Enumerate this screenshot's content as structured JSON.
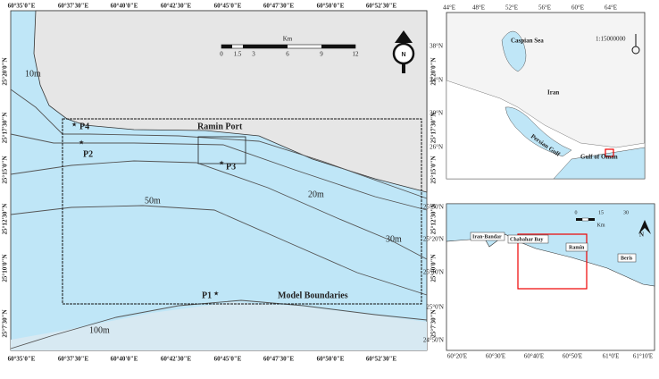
{
  "main_map": {
    "lon_labels": [
      "60°35'0\"E",
      "60°37'30\"E",
      "60°40'0\"E",
      "60°42'30\"E",
      "60°45'0\"E",
      "60°47'30\"E",
      "60°50'0\"E",
      "60°52'30\"E"
    ],
    "lat_labels": [
      "25°20'0\"N",
      "25°17'30\"N",
      "25°15'0\"N",
      "25°12'30\"N",
      "25°10'0\"N",
      "25°7'30\"N"
    ],
    "scale": {
      "unit": "Km",
      "ticks": [
        "0",
        "1.5",
        "3",
        "6",
        "9",
        "12"
      ]
    },
    "north": "N",
    "contours": [
      "10m",
      "20m",
      "30m",
      "50m",
      "100m"
    ],
    "points": [
      "P4",
      "P2",
      "P3",
      "P1"
    ],
    "port": "Ramin Port",
    "boundary": "Model Boundaries"
  },
  "iran_inset": {
    "lon_labels": [
      "44°E",
      "48°E",
      "52°E",
      "56°E",
      "60°E",
      "64°E"
    ],
    "lat_labels": [
      "38°N",
      "34°N",
      "30°N",
      "26°N"
    ],
    "places": [
      "Caspian Sea",
      "Iran",
      "Persian Gulf",
      "Gulf of Oman"
    ],
    "scale": "1:15000000"
  },
  "coast_inset": {
    "lat_labels": [
      "25°30'N",
      "25°20'N",
      "25°10'N",
      "25°0'N",
      "24°50'N"
    ],
    "lon_labels": [
      "60°20'E",
      "60°30'E",
      "60°40'E",
      "60°50'E",
      "61°0'E",
      "61°10'E"
    ],
    "scale": {
      "ticks": [
        "0",
        "15",
        "30"
      ],
      "unit": "Km"
    },
    "places": [
      "Iran-Bandar",
      "Chabahar Bay",
      "Ramin",
      "Beris"
    ],
    "north": "N"
  }
}
